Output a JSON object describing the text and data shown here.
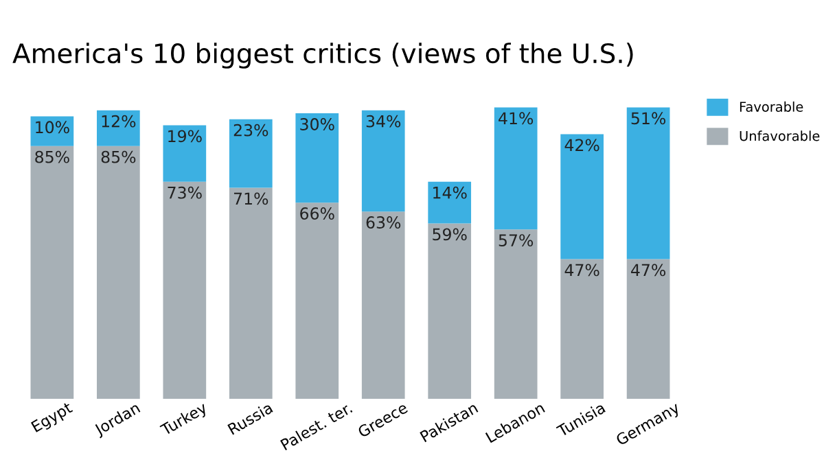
{
  "chart_data": {
    "type": "bar",
    "stacked": true,
    "title": "America's 10 biggest critics (views of the U.S.)",
    "categories": [
      "Egypt",
      "Jordan",
      "Turkey",
      "Russia",
      "Palest. ter.",
      "Greece",
      "Pakistan",
      "Lebanon",
      "Tunisia",
      "Germany"
    ],
    "series": [
      {
        "name": "Unfavorable",
        "color": "#a7b0b6",
        "values": [
          85,
          85,
          73,
          71,
          66,
          63,
          59,
          57,
          47,
          47
        ],
        "value_labels": [
          "85%",
          "85%",
          "73%",
          "71%",
          "66%",
          "63%",
          "59%",
          "57%",
          "47%",
          "47%"
        ]
      },
      {
        "name": "Favorable",
        "color": "#3cb0e2",
        "values": [
          10,
          12,
          19,
          23,
          30,
          34,
          14,
          41,
          42,
          51
        ],
        "value_labels": [
          "10%",
          "12%",
          "19%",
          "23%",
          "30%",
          "34%",
          "14%",
          "41%",
          "42%",
          "51%"
        ]
      }
    ],
    "legend": "top right",
    "grid": false
  }
}
